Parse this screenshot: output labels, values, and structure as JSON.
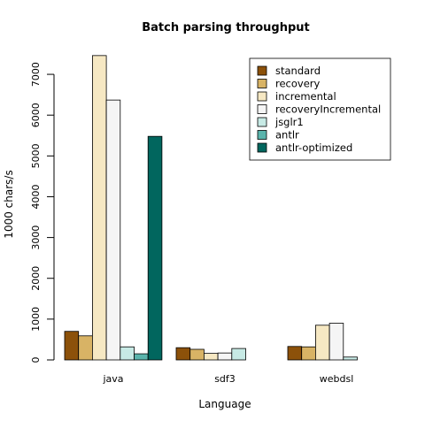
{
  "chart_data": {
    "type": "bar",
    "title": "Batch parsing throughput",
    "xlabel": "Language",
    "ylabel": "1000 chars/s",
    "categories": [
      "java",
      "sdf3",
      "webdsl"
    ],
    "ylim": [
      0,
      7500
    ],
    "yticks": [
      0,
      1000,
      2000,
      3000,
      4000,
      5000,
      6000,
      7000
    ],
    "grid": false,
    "legend_position": "top-right",
    "series": [
      {
        "name": "standard",
        "color": "#8c510a",
        "values": [
          700,
          300,
          330
        ]
      },
      {
        "name": "recovery",
        "color": "#d8b365",
        "values": [
          590,
          260,
          320
        ]
      },
      {
        "name": "incremental",
        "color": "#f6e8c3",
        "values": [
          7460,
          160,
          850
        ]
      },
      {
        "name": "recoveryIncremental",
        "color": "#f5f5f5",
        "values": [
          6370,
          170,
          900
        ]
      },
      {
        "name": "jsglr1",
        "color": "#c7eae5",
        "values": [
          320,
          280,
          70
        ]
      },
      {
        "name": "antlr",
        "color": "#5ab4ac",
        "values": [
          150,
          null,
          null
        ]
      },
      {
        "name": "antlr-optimized",
        "color": "#01665e",
        "values": [
          5480,
          null,
          null
        ]
      }
    ]
  }
}
